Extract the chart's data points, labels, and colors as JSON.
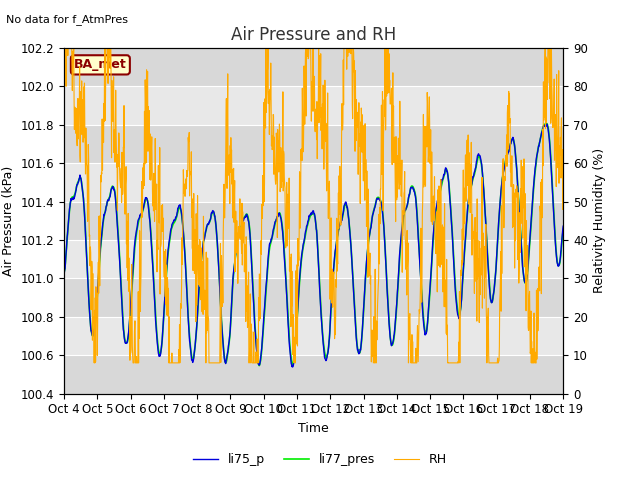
{
  "title": "Air Pressure and RH",
  "no_data_text": "No data for f_AtmPres",
  "ba_met_label": "BA_met",
  "ylabel_left": "Air Pressure (kPa)",
  "ylabel_right": "Relativity Humidity (%)",
  "xlabel": "Time",
  "ylim_left": [
    100.4,
    102.2
  ],
  "ylim_right": [
    0,
    90
  ],
  "xtick_labels": [
    "Oct 4",
    "Oct 5",
    "Oct 6",
    "Oct 7",
    "Oct 8",
    "Oct 9",
    "Oct 10",
    "Oct 11",
    "Oct 12",
    "Oct 13",
    "Oct 14",
    "Oct 15",
    "Oct 16",
    "Oct 17",
    "Oct 18",
    "Oct 19"
  ],
  "color_li75": "#0000dd",
  "color_li77": "#00ee00",
  "color_rh": "#ffaa00",
  "legend_labels": [
    "li75_p",
    "li77_pres",
    "RH"
  ],
  "background_color": "#ffffff",
  "plot_bg_odd": "#d8d8d8",
  "plot_bg_even": "#e8e8e8",
  "grid_color": "#ffffff",
  "title_fontsize": 12,
  "label_fontsize": 9,
  "tick_fontsize": 8.5,
  "ba_met_color": "#8B0000",
  "ba_met_bg": "#ffffcc"
}
